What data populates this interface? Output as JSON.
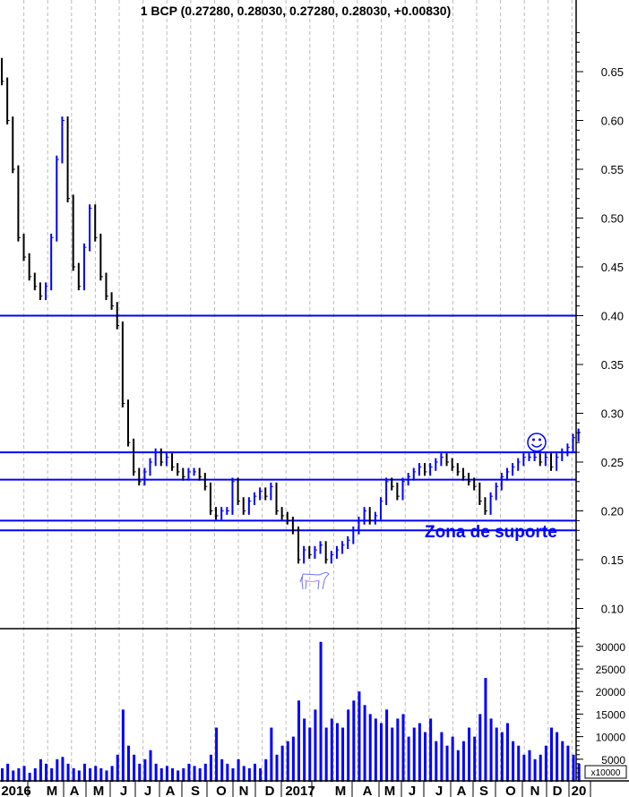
{
  "chart_data": {
    "type": "ohlc",
    "title": "1 BCP (0.27280, 0.28030, 0.27280, 0.28030, +0.00830)",
    "interval": "weekly",
    "x_start": "2016-01-04",
    "x_tick_labels": [
      "2016",
      "M",
      "A",
      "M",
      "J",
      "J",
      "A",
      "S",
      "O",
      "N",
      "D",
      "2017",
      "M",
      "A",
      "M",
      "J",
      "J",
      "A",
      "S",
      "O",
      "N",
      "D",
      "20"
    ],
    "price_axis": {
      "ylim": [
        0.08,
        0.7
      ],
      "ticks": [
        "0.65",
        "0.60",
        "0.55",
        "0.50",
        "0.45",
        "0.40",
        "0.35",
        "0.30",
        "0.25",
        "0.20",
        "0.15",
        "0.10"
      ]
    },
    "volume_axis": {
      "ylim": [
        0,
        33000
      ],
      "ticks": [
        "30000",
        "25000",
        "20000",
        "15000",
        "10000",
        "5000"
      ],
      "unit_label": "x10000"
    },
    "grid": "vertical dashed at month boundaries",
    "close": [
      0.64,
      0.6,
      0.55,
      0.48,
      0.46,
      0.44,
      0.43,
      0.42,
      0.43,
      0.48,
      0.56,
      0.6,
      0.52,
      0.45,
      0.43,
      0.47,
      0.51,
      0.48,
      0.44,
      0.42,
      0.41,
      0.39,
      0.31,
      0.27,
      0.24,
      0.23,
      0.24,
      0.25,
      0.26,
      0.25,
      0.255,
      0.245,
      0.24,
      0.235,
      0.24,
      0.24,
      0.235,
      0.225,
      0.2,
      0.195,
      0.2,
      0.2,
      0.23,
      0.21,
      0.2,
      0.21,
      0.215,
      0.22,
      0.215,
      0.225,
      0.2,
      0.195,
      0.19,
      0.18,
      0.15,
      0.16,
      0.155,
      0.16,
      0.165,
      0.15,
      0.155,
      0.16,
      0.165,
      0.17,
      0.18,
      0.19,
      0.2,
      0.19,
      0.195,
      0.21,
      0.23,
      0.225,
      0.215,
      0.23,
      0.235,
      0.24,
      0.245,
      0.24,
      0.245,
      0.25,
      0.255,
      0.25,
      0.245,
      0.24,
      0.235,
      0.23,
      0.225,
      0.21,
      0.2,
      0.215,
      0.225,
      0.235,
      0.24,
      0.245,
      0.25,
      0.255,
      0.255,
      0.255,
      0.25,
      0.255,
      0.245,
      0.255,
      0.26,
      0.265,
      0.275,
      0.2803
    ],
    "volume": [
      3000,
      4000,
      2500,
      3000,
      3500,
      2000,
      3000,
      5000,
      4000,
      3000,
      5000,
      5500,
      4000,
      3000,
      2500,
      4000,
      3000,
      3500,
      3000,
      2500,
      3500,
      6000,
      16000,
      8000,
      6000,
      4000,
      5000,
      7000,
      4000,
      3000,
      3500,
      3000,
      2500,
      3000,
      4000,
      3500,
      3000,
      4000,
      6000,
      12000,
      5000,
      4000,
      3000,
      5000,
      3500,
      3000,
      4000,
      3000,
      5000,
      12000,
      6000,
      8000,
      9000,
      10000,
      18000,
      14000,
      12000,
      16000,
      31000,
      12000,
      14000,
      13000,
      12000,
      16000,
      18000,
      20000,
      17000,
      15000,
      14000,
      13000,
      16000,
      12000,
      14000,
      15000,
      10000,
      12000,
      13000,
      11000,
      14000,
      9000,
      11000,
      8000,
      10000,
      7000,
      9000,
      12000,
      10000,
      15000,
      23000,
      14000,
      12000,
      11000,
      13000,
      9000,
      8000,
      6000,
      7000,
      5000,
      6000,
      8000,
      12000,
      11000,
      9000,
      8000,
      6000,
      4000
    ],
    "horizontal_lines": [
      0.4,
      0.26,
      0.232,
      0.19,
      0.18
    ],
    "annotations": [
      "Zona de suporte"
    ],
    "colors": {
      "up": "#0000ff",
      "down": "#000000",
      "lines": "#0000ff",
      "grid": "#bbbbbb"
    }
  },
  "icons": {
    "smiley": "smiley-face-icon",
    "bull": "bull-icon"
  }
}
